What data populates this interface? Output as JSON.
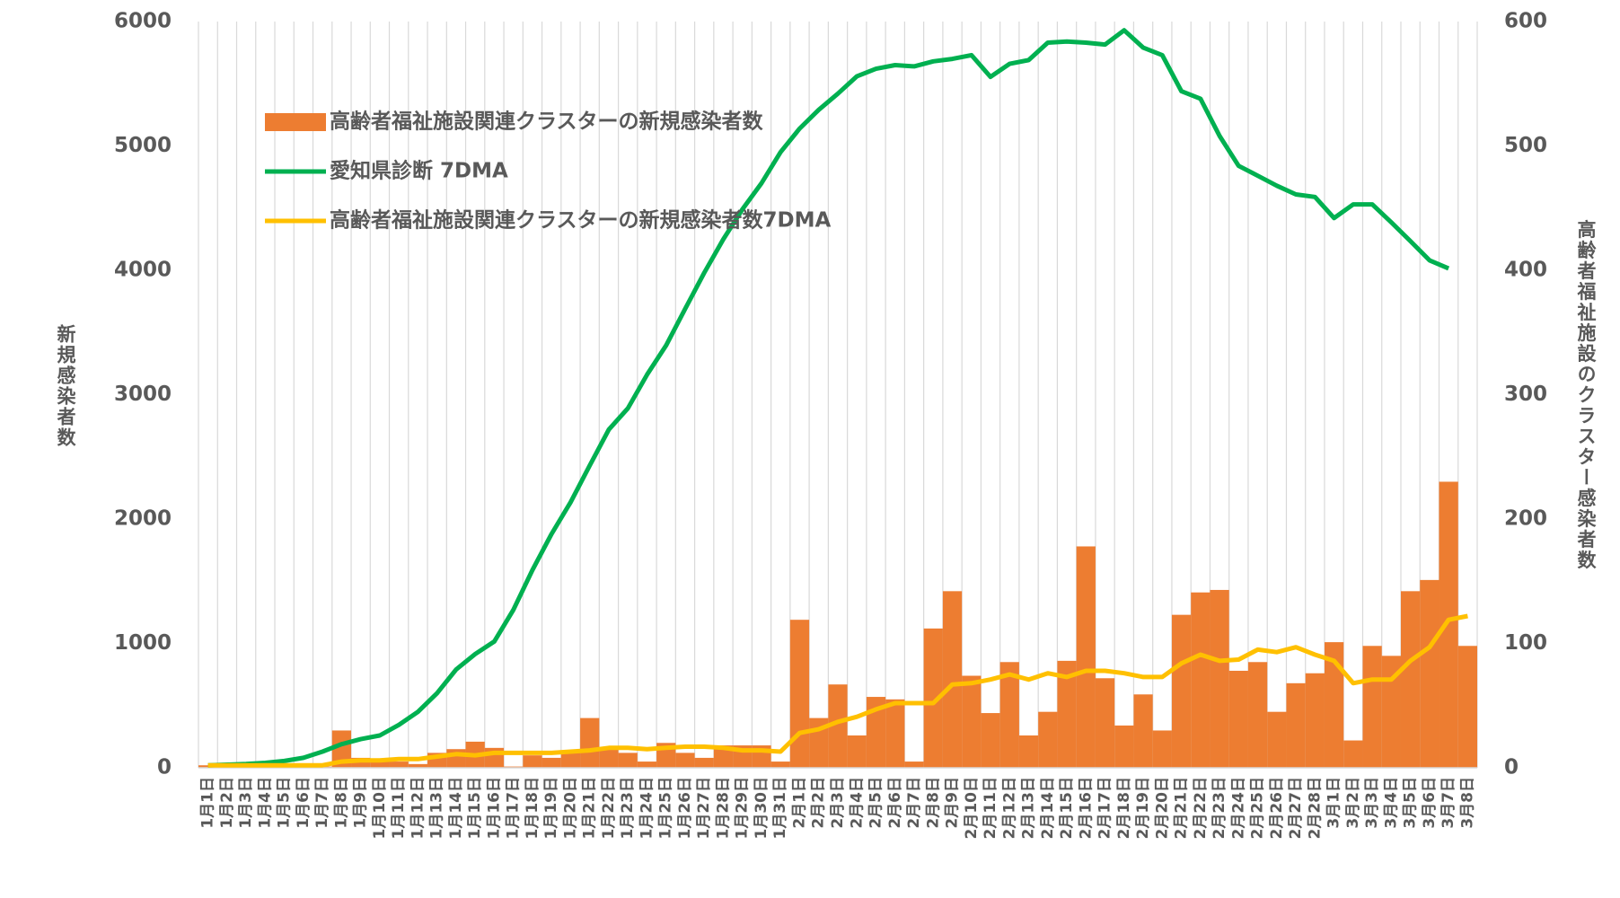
{
  "chart_data": {
    "type": "bar",
    "categories": [
      "1月1日",
      "1月2日",
      "1月3日",
      "1月4日",
      "1月5日",
      "1月6日",
      "1月7日",
      "1月8日",
      "1月9日",
      "1月10日",
      "1月11日",
      "1月12日",
      "1月13日",
      "1月14日",
      "1月15日",
      "1月16日",
      "1月17日",
      "1月18日",
      "1月19日",
      "1月20日",
      "1月21日",
      "1月22日",
      "1月23日",
      "1月24日",
      "1月25日",
      "1月26日",
      "1月27日",
      "1月28日",
      "1月29日",
      "1月30日",
      "1月31日",
      "2月1日",
      "2月2日",
      "2月3日",
      "2月4日",
      "2月5日",
      "2月6日",
      "2月7日",
      "2月8日",
      "2月9日",
      "2月10日",
      "2月11日",
      "2月12日",
      "2月13日",
      "2月14日",
      "2月15日",
      "2月16日",
      "2月17日",
      "2月18日",
      "2月19日",
      "2月20日",
      "2月21日",
      "2月22日",
      "2月23日",
      "2月24日",
      "2月25日",
      "2月26日",
      "2月27日",
      "2月28日",
      "3月1日",
      "3月2日",
      "3月3日",
      "3月4日",
      "3月5日",
      "3月6日",
      "3月7日",
      "3月8日"
    ],
    "series": [
      {
        "name": "高齢者福祉施設関連クラスターの新規感染者数",
        "type": "bar",
        "axis": "y2",
        "color": "#ed7d31",
        "values": [
          2,
          2,
          3,
          2,
          2,
          2,
          1,
          30,
          8,
          7,
          5,
          3,
          12,
          15,
          21,
          16,
          1,
          10,
          8,
          13,
          40,
          15,
          12,
          5,
          20,
          12,
          8,
          18,
          18,
          18,
          5,
          119,
          40,
          67,
          26,
          57,
          55,
          5,
          112,
          142,
          74,
          44,
          85,
          26,
          45,
          86,
          178,
          72,
          34,
          59,
          30,
          123,
          141,
          143,
          78,
          85,
          45,
          68,
          76,
          101,
          22,
          98,
          90,
          142,
          151,
          230,
          98
        ]
      },
      {
        "name": "愛知県診断  7DMA",
        "type": "line",
        "axis": "y",
        "color": "#00b050",
        "values": [
          20,
          25,
          30,
          40,
          55,
          80,
          130,
          190,
          230,
          260,
          345,
          450,
          600,
          790,
          915,
          1015,
          1270,
          1590,
          1880,
          2135,
          2430,
          2720,
          2890,
          3160,
          3395,
          3690,
          3980,
          4250,
          4490,
          4700,
          4950,
          5140,
          5290,
          5420,
          5560,
          5620,
          5650,
          5640,
          5680,
          5700,
          5730,
          5555,
          5660,
          5690,
          5830,
          5840,
          5830,
          5815,
          5930,
          5790,
          5730,
          5440,
          5380,
          5080,
          4840,
          4760,
          4680,
          4610,
          4590,
          4420,
          4530,
          4530,
          4385,
          4235,
          4080,
          4015,
          null
        ]
      },
      {
        "name": "高齢者福祉施設関連クラスターの新規感染者数7DMA",
        "type": "line",
        "axis": "y2",
        "color": "#ffc000",
        "values": [
          2,
          2,
          2,
          2,
          2,
          2,
          2,
          5,
          6,
          6,
          7,
          7,
          9,
          11,
          10,
          12,
          12,
          12,
          12,
          13,
          14,
          16,
          16,
          15,
          16,
          17,
          17,
          16,
          14,
          14,
          13,
          28,
          31,
          37,
          41,
          47,
          52,
          52,
          52,
          67,
          68,
          71,
          75,
          71,
          76,
          73,
          78,
          78,
          76,
          73,
          73,
          84,
          91,
          86,
          87,
          95,
          93,
          97,
          91,
          86,
          68,
          71,
          71,
          86,
          97,
          119,
          122
        ]
      }
    ],
    "y_label": "新規感染者数",
    "y2_label": "高齢者福祉施設のクラスター感染者数",
    "ylim": [
      0,
      6000
    ],
    "yticks": [
      0,
      1000,
      2000,
      3000,
      4000,
      5000,
      6000
    ],
    "y2lim": [
      0,
      600
    ],
    "y2ticks": [
      0,
      100,
      200,
      300,
      400,
      500,
      600
    ],
    "grid": true
  }
}
